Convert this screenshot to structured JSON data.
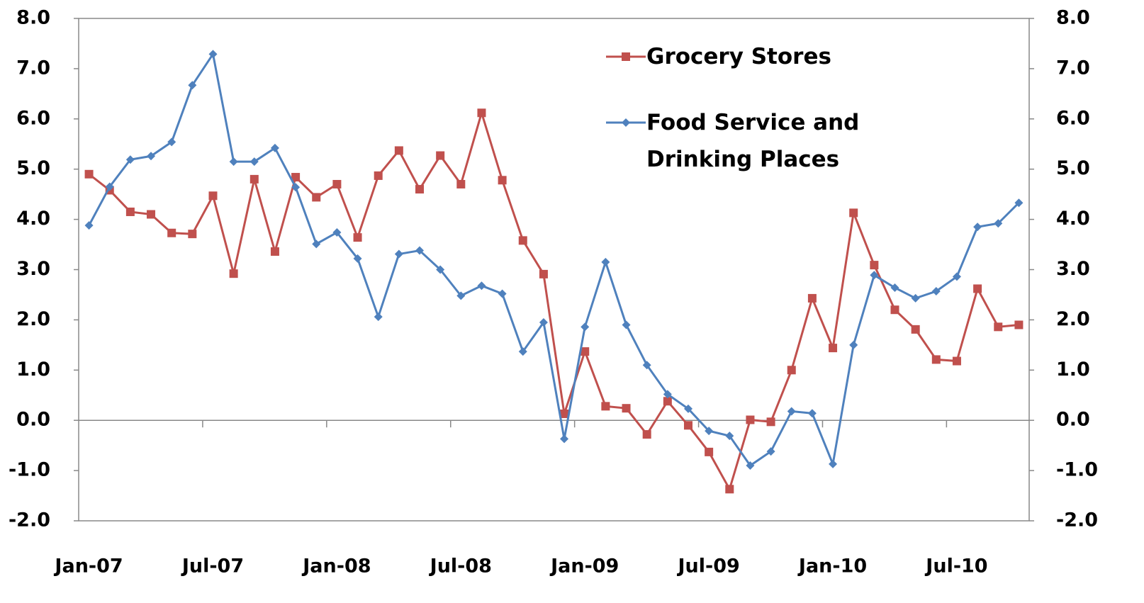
{
  "chart_data": {
    "type": "line",
    "categories": [
      "Jan-07",
      null,
      null,
      null,
      null,
      null,
      "Jul-07",
      null,
      null,
      null,
      null,
      null,
      "Jan-08",
      null,
      null,
      null,
      null,
      null,
      "Jul-08",
      null,
      null,
      null,
      null,
      null,
      "Jan-09",
      null,
      null,
      null,
      null,
      null,
      "Jul-09",
      null,
      null,
      null,
      null,
      null,
      "Jan-10",
      null,
      null,
      null,
      null,
      null,
      "Jul-10",
      null,
      null,
      null
    ],
    "series": [
      {
        "name": "Grocery Stores",
        "color": "#c0504d",
        "marker": "square",
        "values": [
          4.9,
          4.58,
          4.15,
          4.1,
          3.73,
          3.71,
          4.47,
          2.92,
          4.8,
          3.36,
          4.84,
          4.44,
          4.7,
          3.64,
          4.87,
          5.37,
          4.6,
          5.27,
          4.7,
          6.12,
          4.78,
          3.58,
          2.91,
          0.13,
          1.37,
          0.28,
          0.24,
          -0.28,
          0.38,
          -0.1,
          -0.63,
          -1.37,
          0.01,
          -0.03,
          1.0,
          2.43,
          1.44,
          4.13,
          3.09,
          2.2,
          1.81,
          1.21,
          1.18,
          2.62,
          1.86,
          1.9
        ]
      },
      {
        "name": "Food Service and Drinking Places",
        "color": "#4f81bd",
        "marker": "diamond",
        "values": [
          3.88,
          4.65,
          5.19,
          5.26,
          5.54,
          6.67,
          7.29,
          5.15,
          5.15,
          5.42,
          4.64,
          3.51,
          3.74,
          3.22,
          2.06,
          3.31,
          3.38,
          3.0,
          2.48,
          2.68,
          2.52,
          1.37,
          1.95,
          -0.37,
          1.86,
          3.15,
          1.9,
          1.1,
          0.52,
          0.23,
          -0.21,
          -0.31,
          -0.9,
          -0.62,
          0.18,
          0.14,
          -0.87,
          1.5,
          2.89,
          2.64,
          2.43,
          2.57,
          2.86,
          3.85,
          3.92,
          4.33
        ]
      }
    ],
    "ylim": [
      -2,
      8
    ],
    "yticks": [
      {
        "value": -2,
        "label": "-2.0"
      },
      {
        "value": -1,
        "label": "-1.0"
      },
      {
        "value": 0,
        "label": "0.0"
      },
      {
        "value": 1,
        "label": "1.0"
      },
      {
        "value": 2,
        "label": "2.0"
      },
      {
        "value": 3,
        "label": "3.0"
      },
      {
        "value": 4,
        "label": "4.0"
      },
      {
        "value": 5,
        "label": "5.0"
      },
      {
        "value": 6,
        "label": "6.0"
      },
      {
        "value": 7,
        "label": "7.0"
      },
      {
        "value": 8,
        "label": "8.0"
      }
    ],
    "y2lim": [
      -2,
      8
    ],
    "y2ticks": [
      {
        "value": -2,
        "label": "-2.0"
      },
      {
        "value": -1,
        "label": "-1.0"
      },
      {
        "value": 0,
        "label": "0.0"
      },
      {
        "value": 1,
        "label": "1.0"
      },
      {
        "value": 2,
        "label": "2.0"
      },
      {
        "value": 3,
        "label": "3.0"
      },
      {
        "value": 4,
        "label": "4.0"
      },
      {
        "value": 5,
        "label": "5.0"
      },
      {
        "value": 6,
        "label": "6.0"
      },
      {
        "value": 7,
        "label": "7.0"
      },
      {
        "value": 8,
        "label": "8.0"
      }
    ],
    "grid": false,
    "legend": "top-right"
  }
}
